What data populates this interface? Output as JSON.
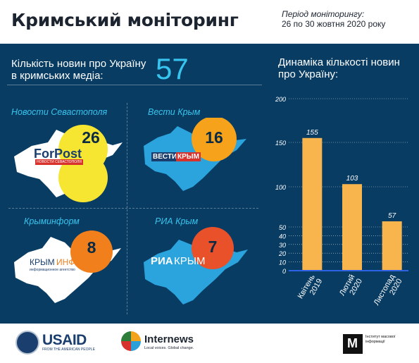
{
  "header": {
    "title": "Кримський моніторинг",
    "period_line1": "Період моніторингу:",
    "period_line2": "26 по 30 жовтня  2020 року"
  },
  "summary": {
    "label_line1": "Кількість новин про Україну",
    "label_line2": "в кримських медіа:",
    "value": "57"
  },
  "media": [
    {
      "name": "Новости Севастополя",
      "count": "26",
      "logo": "ForPost",
      "logo_sub": "НОВОСТИ СЕВАСТОПОЛЯ",
      "bubble_color": "#f6e632"
    },
    {
      "name": "Вести Крым",
      "count": "16",
      "logo": "ВЕСТИ",
      "logo2": "КРЫМ",
      "bubble_color": "#f6a21a"
    },
    {
      "name": "Крыминформ",
      "count": "8",
      "logo": "КРЫМ",
      "logo2": "ИНФОРМ",
      "logo_sub": "информационное агентство",
      "bubble_color": "#f07f1c"
    },
    {
      "name": "РИА Крым",
      "count": "7",
      "logo": "РИА",
      "logo2": "КРЫМ",
      "bubble_color": "#e9512a"
    }
  ],
  "colors": {
    "panel_bg": "#083c63",
    "accent_blue": "#37c4ee",
    "bar": "#f9b54d",
    "axis": "#2e63e6"
  },
  "chart_data": {
    "type": "bar",
    "title": "Динаміка кількості новин про Україну:",
    "categories": [
      [
        "Квітень",
        "2019"
      ],
      [
        "Лютий",
        "2020"
      ],
      [
        "Листопад",
        "2020"
      ]
    ],
    "values": [
      155,
      103,
      57
    ],
    "ylim": [
      0,
      200
    ],
    "yticks": [
      0,
      10,
      20,
      30,
      40,
      50,
      100,
      150,
      200
    ],
    "grid": true
  },
  "footer": {
    "usaid": "USAID",
    "usaid_sub": "FROM THE AMERICAN PEOPLE",
    "internews": "Internews",
    "internews_sub": "Local voices. Global change.",
    "imi_mark": "М",
    "imi_text": "Інститут масової інформації"
  }
}
